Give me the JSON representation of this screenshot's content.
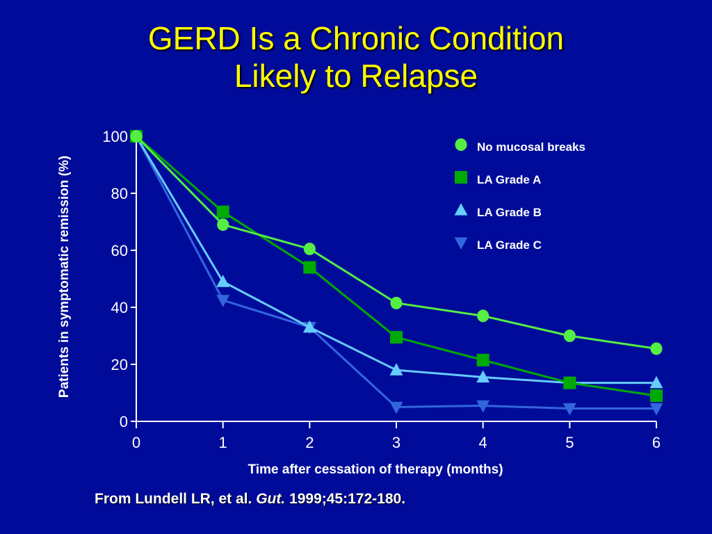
{
  "slide": {
    "title_line1": "GERD Is a Chronic Condition",
    "title_line2": "Likely to Relapse",
    "citation_prefix": "From Lundell LR, et al.",
    "citation_journal": "Gut.",
    "citation_rest": "1999;45:172-180",
    "citation_end": "."
  },
  "colors": {
    "background": "#000c99",
    "title": "#ffff00",
    "text": "#ffffff"
  },
  "chart_data": {
    "type": "line",
    "xlabel": "Time after cessation of therapy (months)",
    "ylabel": "Patients in symptomatic remission (%)",
    "x": [
      0,
      1,
      2,
      3,
      4,
      5,
      6
    ],
    "x_ticks": [
      "0",
      "1",
      "2",
      "3",
      "4",
      "5",
      "6"
    ],
    "y_ticks": [
      "0",
      "20",
      "40",
      "60",
      "80",
      "100"
    ],
    "xlim": [
      0,
      6
    ],
    "ylim": [
      0,
      100
    ],
    "grid": false,
    "legend_position": "top-right",
    "series": [
      {
        "name": "No mucosal breaks",
        "marker": "circle",
        "color": "#55ee44",
        "values": [
          100,
          69,
          60.5,
          41.5,
          37,
          30,
          25.5
        ]
      },
      {
        "name": "LA Grade A",
        "marker": "square",
        "color": "#00aa00",
        "values": [
          100,
          73.5,
          54,
          29.5,
          21.5,
          13.5,
          9
        ]
      },
      {
        "name": "LA Grade B",
        "marker": "triangle-up",
        "color": "#66ccff",
        "values": [
          100,
          49,
          33,
          18,
          15.5,
          13.5,
          13.5
        ]
      },
      {
        "name": "LA Grade C",
        "marker": "triangle-down",
        "color": "#3366dd",
        "values": [
          100,
          42.5,
          33,
          5,
          5.5,
          4.5,
          4.5
        ]
      }
    ]
  }
}
